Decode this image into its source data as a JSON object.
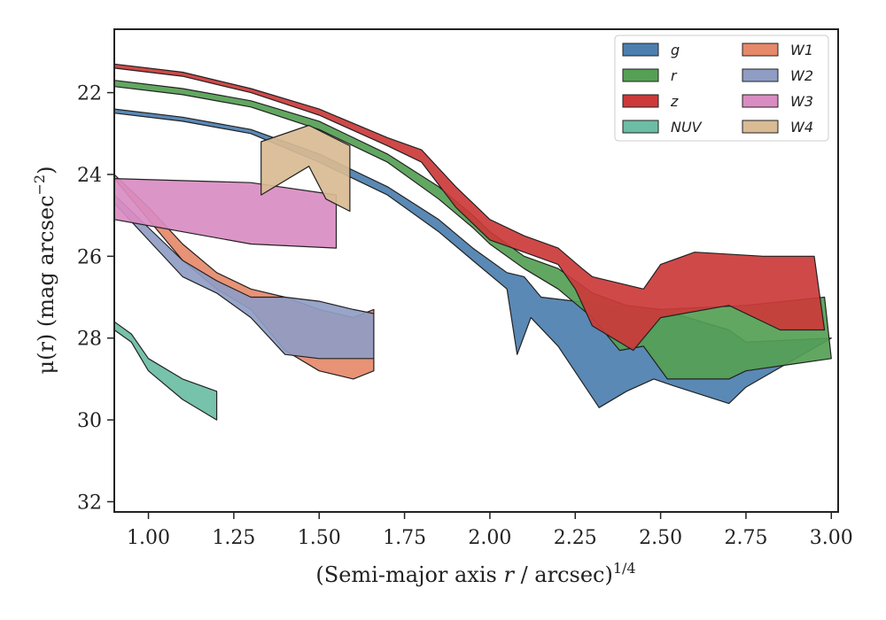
{
  "chart_data": {
    "type": "area",
    "xlabel": "(Semi-major axis r / arcsec)",
    "xlabel_var": "r",
    "xlabel_pre": "(Semi-major axis ",
    "xlabel_post": " / arcsec)",
    "xlabel_sup": "1/4",
    "ylabel_pre": "μ(r) (mag arcsec",
    "ylabel_sup": "−2",
    "ylabel_post": ")",
    "xlim": [
      0.9,
      3.02
    ],
    "ylim": [
      32.25,
      20.45
    ],
    "y_inverted": true,
    "xticks": [
      1.0,
      1.25,
      1.5,
      1.75,
      2.0,
      2.25,
      2.5,
      2.75,
      3.0
    ],
    "xtick_labels": [
      "1.00",
      "1.25",
      "1.50",
      "1.75",
      "2.00",
      "2.25",
      "2.50",
      "2.75",
      "3.00"
    ],
    "yticks": [
      22,
      24,
      26,
      28,
      30,
      32
    ],
    "ytick_labels": [
      "22",
      "24",
      "26",
      "28",
      "30",
      "32"
    ],
    "grid": false,
    "legend_position": "top-right",
    "series": [
      {
        "name": "g",
        "color": "#4c7faf",
        "upper": [
          [
            0.9,
            22.4
          ],
          [
            1.1,
            22.6
          ],
          [
            1.3,
            22.9
          ],
          [
            1.5,
            23.5
          ],
          [
            1.7,
            24.3
          ],
          [
            1.85,
            25.1
          ],
          [
            1.95,
            25.8
          ],
          [
            2.05,
            26.4
          ],
          [
            2.1,
            26.5
          ],
          [
            2.15,
            27.0
          ],
          [
            2.25,
            27.1
          ],
          [
            2.35,
            27.2
          ],
          [
            2.5,
            27.3
          ],
          [
            2.7,
            27.8
          ],
          [
            2.75,
            28.1
          ],
          [
            3.0,
            28.0
          ]
        ],
        "lower": [
          [
            0.9,
            22.5
          ],
          [
            1.1,
            22.7
          ],
          [
            1.3,
            23.0
          ],
          [
            1.5,
            23.7
          ],
          [
            1.7,
            24.5
          ],
          [
            1.85,
            25.4
          ],
          [
            1.95,
            26.1
          ],
          [
            2.05,
            26.8
          ],
          [
            2.08,
            28.4
          ],
          [
            2.12,
            27.5
          ],
          [
            2.2,
            28.2
          ],
          [
            2.32,
            29.7
          ],
          [
            2.4,
            29.3
          ],
          [
            2.48,
            29.0
          ],
          [
            2.55,
            29.2
          ],
          [
            2.7,
            29.6
          ],
          [
            2.75,
            29.2
          ]
        ]
      },
      {
        "name": "r",
        "color": "#55a054",
        "upper": [
          [
            0.9,
            21.7
          ],
          [
            1.1,
            21.9
          ],
          [
            1.3,
            22.2
          ],
          [
            1.5,
            22.7
          ],
          [
            1.7,
            23.5
          ],
          [
            1.85,
            24.3
          ],
          [
            1.95,
            25.0
          ],
          [
            2.0,
            25.4
          ],
          [
            2.1,
            26.0
          ],
          [
            2.2,
            26.3
          ],
          [
            2.3,
            26.9
          ],
          [
            2.4,
            27.2
          ],
          [
            2.5,
            27.3
          ],
          [
            2.75,
            27.2
          ],
          [
            2.98,
            27.0
          ]
        ],
        "lower": [
          [
            0.9,
            21.85
          ],
          [
            1.1,
            22.05
          ],
          [
            1.3,
            22.35
          ],
          [
            1.5,
            22.9
          ],
          [
            1.7,
            23.7
          ],
          [
            1.85,
            24.6
          ],
          [
            1.95,
            25.3
          ],
          [
            2.0,
            25.7
          ],
          [
            2.1,
            26.3
          ],
          [
            2.2,
            26.8
          ],
          [
            2.3,
            27.5
          ],
          [
            2.38,
            28.3
          ],
          [
            2.45,
            28.2
          ],
          [
            2.52,
            29.0
          ],
          [
            2.7,
            29.0
          ],
          [
            2.75,
            28.8
          ],
          [
            3.0,
            28.5
          ]
        ]
      },
      {
        "name": "z",
        "color": "#cc3a3a",
        "upper": [
          [
            0.9,
            21.3
          ],
          [
            1.1,
            21.5
          ],
          [
            1.3,
            21.9
          ],
          [
            1.5,
            22.4
          ],
          [
            1.7,
            23.1
          ],
          [
            1.8,
            23.4
          ],
          [
            1.9,
            24.3
          ],
          [
            2.0,
            25.1
          ],
          [
            2.1,
            25.5
          ],
          [
            2.2,
            25.8
          ],
          [
            2.27,
            26.3
          ],
          [
            2.3,
            26.5
          ],
          [
            2.45,
            26.8
          ],
          [
            2.5,
            26.2
          ],
          [
            2.6,
            25.9
          ],
          [
            2.8,
            26.0
          ],
          [
            2.95,
            26.0
          ]
        ],
        "lower": [
          [
            0.9,
            21.4
          ],
          [
            1.1,
            21.6
          ],
          [
            1.3,
            22.0
          ],
          [
            1.5,
            22.55
          ],
          [
            1.7,
            23.3
          ],
          [
            1.8,
            23.7
          ],
          [
            1.9,
            24.8
          ],
          [
            2.0,
            25.6
          ],
          [
            2.1,
            25.9
          ],
          [
            2.2,
            26.2
          ],
          [
            2.25,
            26.8
          ],
          [
            2.3,
            27.7
          ],
          [
            2.42,
            28.3
          ],
          [
            2.5,
            27.5
          ],
          [
            2.7,
            27.2
          ],
          [
            2.85,
            27.8
          ],
          [
            2.98,
            27.8
          ]
        ]
      },
      {
        "name": "NUV",
        "color": "#6bbda4",
        "upper": [
          [
            0.9,
            27.6
          ],
          [
            0.95,
            27.9
          ],
          [
            1.0,
            28.5
          ],
          [
            1.1,
            29.0
          ],
          [
            1.2,
            29.3
          ]
        ],
        "lower": [
          [
            0.9,
            27.8
          ],
          [
            0.95,
            28.1
          ],
          [
            1.0,
            28.8
          ],
          [
            1.1,
            29.5
          ],
          [
            1.2,
            30.0
          ]
        ]
      },
      {
        "name": "W1",
        "color": "#e6896a",
        "upper": [
          [
            0.9,
            24.0
          ],
          [
            1.0,
            24.8
          ],
          [
            1.1,
            25.7
          ],
          [
            1.2,
            26.4
          ],
          [
            1.3,
            26.8
          ],
          [
            1.4,
            27.0
          ],
          [
            1.5,
            27.3
          ],
          [
            1.6,
            27.5
          ],
          [
            1.66,
            27.3
          ]
        ],
        "lower": [
          [
            0.9,
            24.1
          ],
          [
            1.0,
            25.1
          ],
          [
            1.1,
            26.1
          ],
          [
            1.2,
            26.8
          ],
          [
            1.3,
            27.3
          ],
          [
            1.4,
            28.3
          ],
          [
            1.5,
            28.8
          ],
          [
            1.6,
            29.0
          ],
          [
            1.66,
            28.8
          ]
        ]
      },
      {
        "name": "W2",
        "color": "#8f9dc4",
        "upper": [
          [
            0.9,
            24.5
          ],
          [
            1.0,
            25.3
          ],
          [
            1.1,
            26.1
          ],
          [
            1.2,
            26.6
          ],
          [
            1.3,
            27.0
          ],
          [
            1.4,
            27.0
          ],
          [
            1.5,
            27.1
          ],
          [
            1.6,
            27.3
          ],
          [
            1.66,
            27.4
          ]
        ],
        "lower": [
          [
            0.9,
            24.7
          ],
          [
            1.0,
            25.6
          ],
          [
            1.1,
            26.5
          ],
          [
            1.2,
            26.9
          ],
          [
            1.3,
            27.5
          ],
          [
            1.4,
            28.4
          ],
          [
            1.5,
            28.5
          ],
          [
            1.6,
            28.5
          ],
          [
            1.66,
            28.5
          ]
        ]
      },
      {
        "name": "W3",
        "color": "#d98cc2",
        "upper": [
          [
            0.9,
            24.1
          ],
          [
            1.3,
            24.2
          ],
          [
            1.55,
            24.5
          ]
        ],
        "lower": [
          [
            0.9,
            25.1
          ],
          [
            1.3,
            25.7
          ],
          [
            1.55,
            25.8
          ]
        ]
      },
      {
        "name": "W4",
        "color": "#d9bb94",
        "upper": [
          [
            1.33,
            23.2
          ],
          [
            1.47,
            22.8
          ],
          [
            1.59,
            23.3
          ]
        ],
        "lower": [
          [
            1.33,
            24.5
          ],
          [
            1.47,
            23.8
          ],
          [
            1.52,
            24.6
          ],
          [
            1.59,
            24.9
          ]
        ]
      }
    ]
  },
  "legend": [
    {
      "name": "g",
      "color": "#4c7faf"
    },
    {
      "name": "r",
      "color": "#55a054"
    },
    {
      "name": "z",
      "color": "#cc3a3a"
    },
    {
      "name": "NUV",
      "color": "#6bbda4"
    },
    {
      "name": "W1",
      "color": "#e6896a"
    },
    {
      "name": "W2",
      "color": "#8f9dc4"
    },
    {
      "name": "W3",
      "color": "#d98cc2"
    },
    {
      "name": "W4",
      "color": "#d9bb94"
    }
  ]
}
